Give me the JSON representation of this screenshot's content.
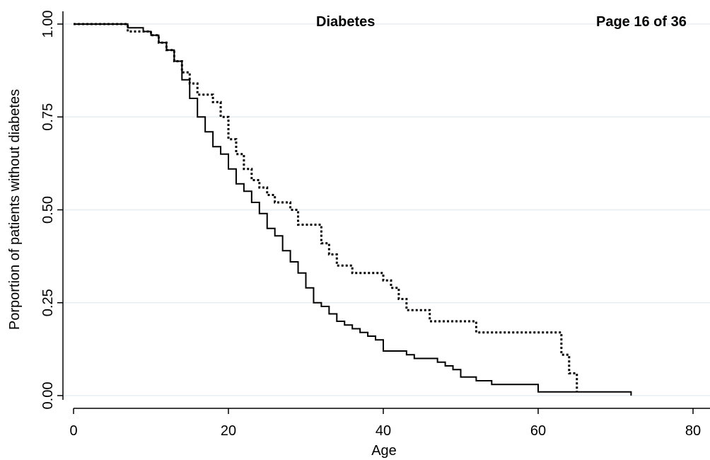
{
  "header": {
    "title": "Diabetes",
    "page": "Page 16 of 36"
  },
  "chart_data": {
    "type": "line",
    "title": "Diabetes",
    "xlabel": "Age",
    "ylabel": "Porportion of patients without diabetes",
    "xlim": [
      0,
      80
    ],
    "ylim": [
      0,
      1
    ],
    "x_ticks": [
      0,
      20,
      40,
      60,
      80
    ],
    "x_tick_labels": [
      "0",
      "20",
      "40",
      "60",
      "80"
    ],
    "y_ticks": [
      0,
      0.25,
      0.5,
      0.75,
      1
    ],
    "y_tick_labels": [
      "0.00",
      "0.25",
      "0.50",
      "0.75",
      "1.00"
    ],
    "grid": true,
    "step": true,
    "legend": "none",
    "series": [
      {
        "style": "solid",
        "x": [
          0,
          7,
          9,
          10,
          11,
          12,
          13,
          14,
          15,
          16,
          17,
          18,
          19,
          20,
          21,
          22,
          23,
          24,
          25,
          26,
          27,
          28,
          29,
          30,
          31,
          32,
          33,
          34,
          35,
          36,
          37,
          38,
          39,
          40,
          43,
          44,
          47,
          48,
          49,
          50,
          52,
          54,
          60,
          72
        ],
        "y": [
          1.0,
          0.99,
          0.98,
          0.97,
          0.95,
          0.93,
          0.9,
          0.85,
          0.8,
          0.75,
          0.71,
          0.67,
          0.65,
          0.61,
          0.57,
          0.55,
          0.52,
          0.49,
          0.45,
          0.43,
          0.39,
          0.36,
          0.33,
          0.29,
          0.25,
          0.24,
          0.22,
          0.2,
          0.19,
          0.18,
          0.17,
          0.16,
          0.15,
          0.12,
          0.11,
          0.1,
          0.09,
          0.08,
          0.07,
          0.05,
          0.04,
          0.03,
          0.01,
          0.0
        ]
      },
      {
        "style": "dotted",
        "x": [
          0,
          7,
          10,
          11,
          12,
          13,
          14,
          15,
          16,
          18,
          19,
          20,
          21,
          22,
          23,
          24,
          25,
          26,
          28,
          29,
          32,
          33,
          34,
          36,
          40,
          41,
          42,
          43,
          46,
          52,
          63,
          64,
          65
        ],
        "y": [
          1.0,
          0.98,
          0.97,
          0.95,
          0.93,
          0.9,
          0.87,
          0.84,
          0.81,
          0.79,
          0.75,
          0.69,
          0.65,
          0.61,
          0.58,
          0.56,
          0.54,
          0.52,
          0.5,
          0.46,
          0.41,
          0.38,
          0.35,
          0.33,
          0.31,
          0.29,
          0.26,
          0.23,
          0.2,
          0.17,
          0.11,
          0.06,
          0.01
        ]
      }
    ]
  }
}
